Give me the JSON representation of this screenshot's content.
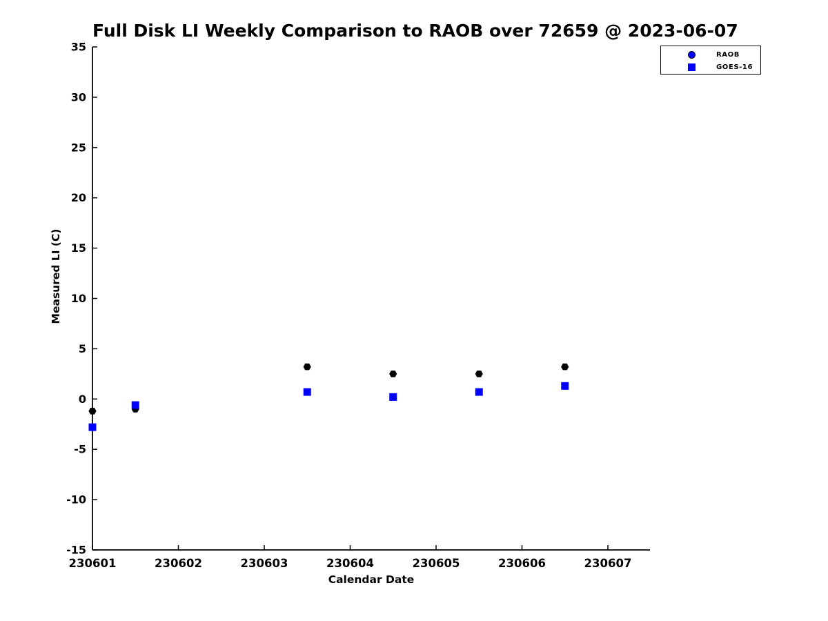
{
  "title": "Full Disk LI Weekly Comparison to RAOB over 72659 @ 2023-06-07",
  "colors": {
    "axis": "#000000",
    "raob_plot_marker": "#000000",
    "raob_legend_marker": "#0000ff",
    "goes16_marker": "#0000ff",
    "background": "#ffffff"
  },
  "legend": {
    "items": [
      {
        "label": "RAOB",
        "marker": "circle",
        "color": "#0000ff"
      },
      {
        "label": "GOES-16",
        "marker": "square",
        "color": "#0000ff"
      }
    ]
  },
  "chart_data": {
    "type": "scatter",
    "title": "Full Disk LI Weekly Comparison to RAOB over 72659 @ 2023-06-07",
    "xlabel": "Calendar Date",
    "ylabel": "Measured LI (C)",
    "xlim": [
      230601,
      230607.49
    ],
    "ylim": [
      -15,
      35
    ],
    "xticks": [
      230601,
      230602,
      230603,
      230604,
      230605,
      230606,
      230607
    ],
    "xtick_labels": [
      "230601",
      "230602",
      "230603",
      "230604",
      "230605",
      "230606",
      "230607"
    ],
    "yticks": [
      35,
      30,
      25,
      20,
      15,
      10,
      5,
      0,
      -5,
      -10,
      -15
    ],
    "ytick_labels": [
      "35",
      "30",
      "25",
      "20",
      "15",
      "10",
      "5",
      "0",
      "-5",
      "-10",
      "-15"
    ],
    "grid": false,
    "legend_position": "top-right",
    "series": [
      {
        "name": "RAOB",
        "marker": "hexagon",
        "color": "#000000",
        "points": [
          [
            230601.0,
            -1.2
          ],
          [
            230601.5,
            -1.0
          ],
          [
            230603.5,
            3.2
          ],
          [
            230604.5,
            2.5
          ],
          [
            230605.5,
            2.5
          ],
          [
            230606.5,
            3.2
          ]
        ]
      },
      {
        "name": "GOES-16",
        "marker": "square",
        "color": "#0000ff",
        "points": [
          [
            230601.0,
            -2.8
          ],
          [
            230601.5,
            -0.6
          ],
          [
            230603.5,
            0.7
          ],
          [
            230604.5,
            0.2
          ],
          [
            230605.5,
            0.7
          ],
          [
            230606.5,
            1.3
          ]
        ]
      }
    ]
  }
}
